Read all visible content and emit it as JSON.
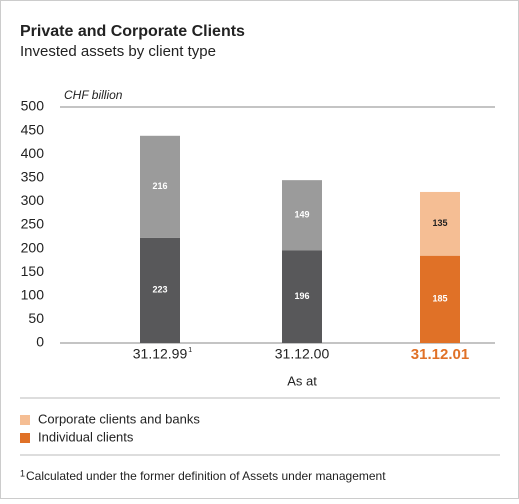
{
  "chart_data": {
    "type": "stacked_bar",
    "title": "Private and Corporate Clients",
    "subtitle": "Invested assets by client type",
    "unit_label": "CHF billion",
    "xlabel": "As at",
    "categories": [
      "31.12.99",
      "31.12.00",
      "31.12.01"
    ],
    "category_markers": [
      "1",
      null,
      null
    ],
    "highlight_category": 2,
    "highlight_color": "#e07127",
    "series": [
      {
        "name": "Individual clients",
        "color": "#e07127",
        "colors": [
          "#58585a",
          "#58585a",
          "#e07127"
        ],
        "values": [
          223,
          196,
          185
        ]
      },
      {
        "name": "Corporate clients and banks",
        "color": "#f5be94",
        "colors": [
          "#9b9b9b",
          "#9b9b9b",
          "#f5be94"
        ],
        "values": [
          216,
          149,
          135
        ]
      }
    ],
    "ylim": [
      0,
      500
    ],
    "yticks": [
      0,
      50,
      100,
      150,
      200,
      250,
      300,
      350,
      400,
      450,
      500
    ],
    "footnote": {
      "marker": "1",
      "text": "Calculated under the former definition of Assets under management"
    }
  }
}
